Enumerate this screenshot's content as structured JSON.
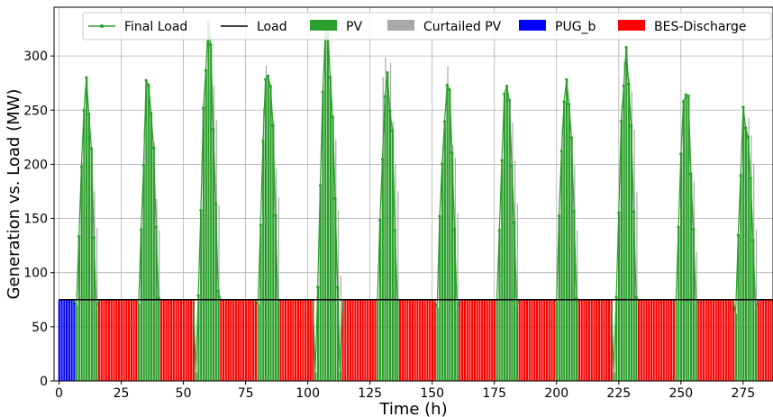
{
  "chart_data": {
    "type": "bar",
    "xlabel": "Time (h)",
    "ylabel": "Generation vs. Load (MW)",
    "xlim": [
      -2,
      287
    ],
    "ylim": [
      0,
      345
    ],
    "x_ticks": [
      0,
      25,
      50,
      75,
      100,
      125,
      150,
      175,
      200,
      225,
      250,
      275
    ],
    "y_ticks": [
      0,
      50,
      100,
      150,
      200,
      250,
      300
    ],
    "grid": true,
    "legend_position": "top",
    "legend": [
      {
        "label": "Final Load",
        "color": "#2ca02c",
        "kind": "line-marker"
      },
      {
        "label": "Load",
        "color": "#000000",
        "kind": "line"
      },
      {
        "label": "PV",
        "color": "#2ca02c",
        "kind": "patch"
      },
      {
        "label": "Curtailed PV",
        "color": "#a9a9a9",
        "kind": "patch"
      },
      {
        "label": "PUG_b",
        "color": "#0000ff",
        "kind": "patch"
      },
      {
        "label": "BES-Discharge",
        "color": "#ff0000",
        "kind": "patch"
      }
    ],
    "load_mw": 75,
    "hours": 288,
    "day_peaks": [
      {
        "day": 0,
        "peak_hour": 11.5,
        "pv_peak": 285,
        "curtailed_peak": 255
      },
      {
        "day": 1,
        "peak_hour": 36.5,
        "pv_peak": 296,
        "curtailed_peak": 264
      },
      {
        "day": 2,
        "peak_hour": 60.5,
        "pv_peak": 335,
        "curtailed_peak": 332
      },
      {
        "day": 3,
        "peak_hour": 84.5,
        "pv_peak": 311,
        "curtailed_peak": 302
      },
      {
        "day": 4,
        "peak_hour": 108.5,
        "pv_peak": 345,
        "curtailed_peak": 312
      },
      {
        "day": 5,
        "peak_hour": 132.5,
        "pv_peak": 302,
        "curtailed_peak": 315
      },
      {
        "day": 6,
        "peak_hour": 156.5,
        "pv_peak": 292,
        "curtailed_peak": 301
      },
      {
        "day": 7,
        "peak_hour": 180.5,
        "pv_peak": 297,
        "curtailed_peak": 281
      },
      {
        "day": 8,
        "peak_hour": 204.5,
        "pv_peak": 314,
        "curtailed_peak": 266
      },
      {
        "day": 9,
        "peak_hour": 228.5,
        "pv_peak": 313,
        "curtailed_peak": 305
      },
      {
        "day": 10,
        "peak_hour": 252.5,
        "pv_peak": 284,
        "curtailed_peak": 242
      },
      {
        "day": 11,
        "peak_hour": 276.5,
        "pv_peak": 270,
        "curtailed_peak": 268
      }
    ],
    "series": [
      {
        "name": "Load",
        "description_values": "constant 75 MW over 0–287 h"
      },
      {
        "name": "PUG_b",
        "range_h": [
          0,
          7
        ],
        "value": 75
      },
      {
        "name": "BES-Discharge",
        "value": 75,
        "note": "night hours outside PV window"
      }
    ]
  }
}
